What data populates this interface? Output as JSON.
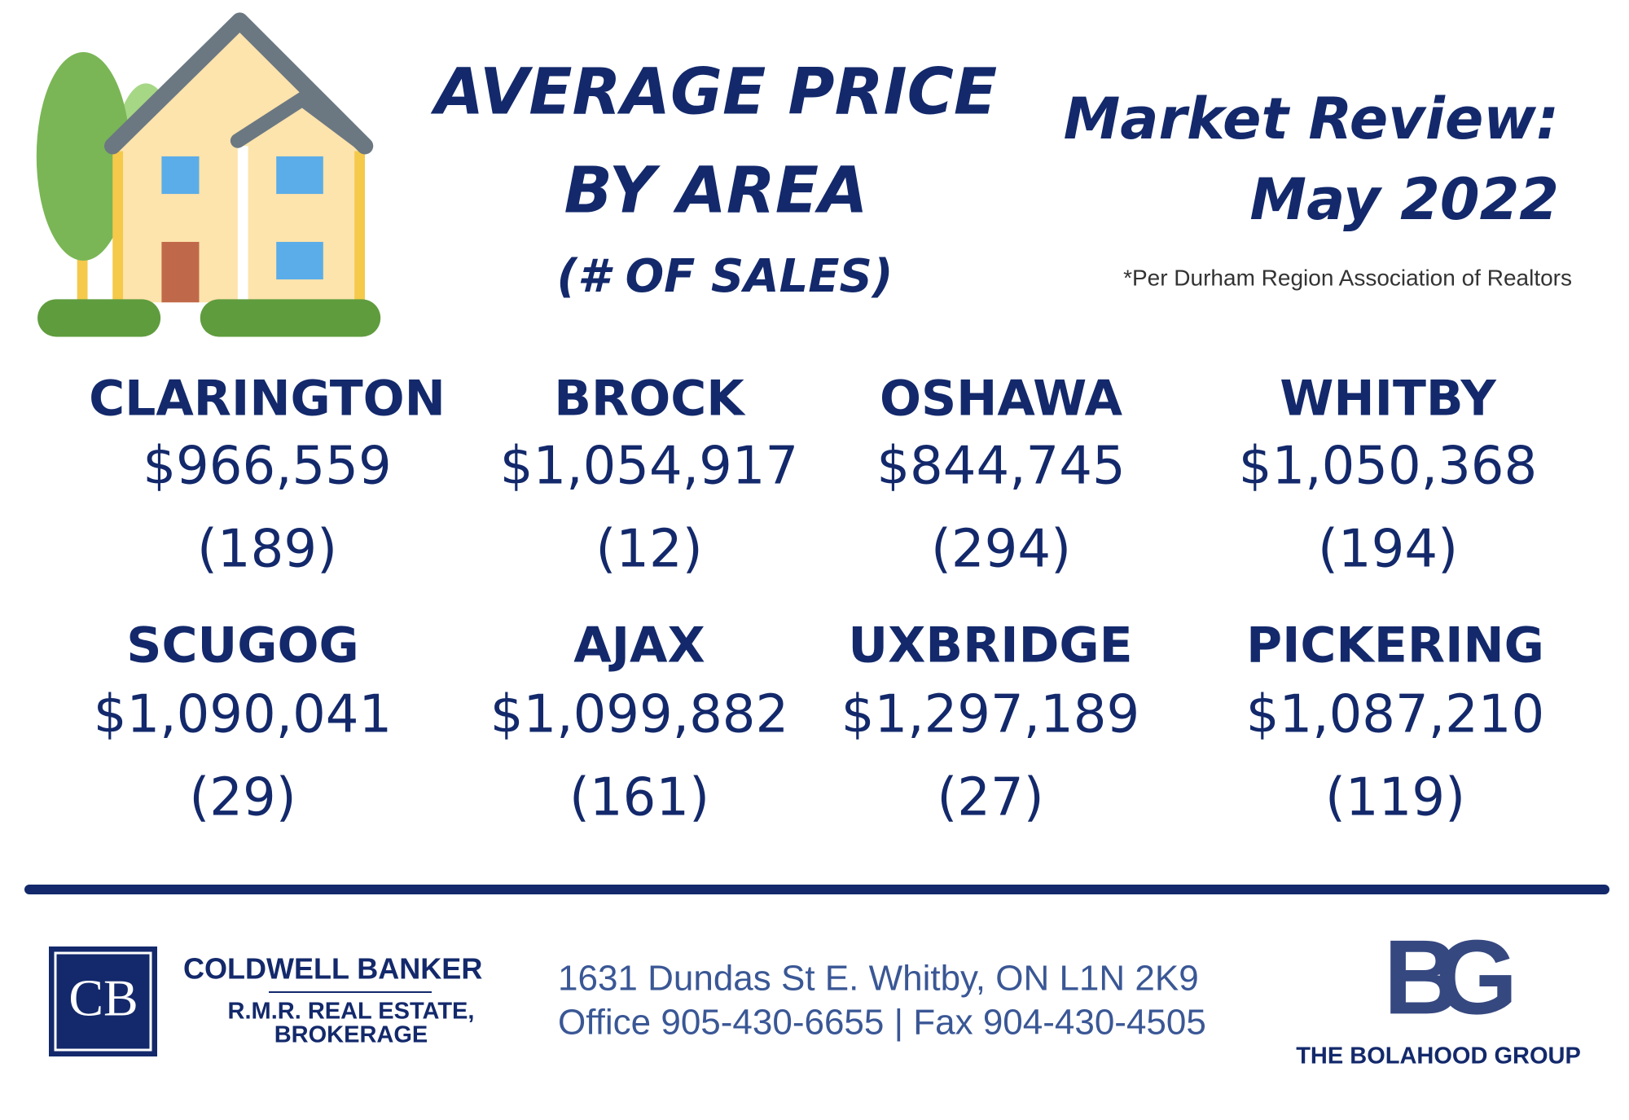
{
  "header": {
    "title_lines": [
      "AVERAGE PRICE",
      "BY AREA"
    ],
    "subtitle": "(# OF SALES)",
    "review_lines": [
      "Market Review:",
      "May 2022"
    ],
    "source_note": "*Per Durham Region Association of Realtors"
  },
  "areas": [
    {
      "name": "CLARINGTON",
      "price": "$966,559",
      "sales": "(189)"
    },
    {
      "name": "BROCK",
      "price": "$1,054,917",
      "sales": "(12)"
    },
    {
      "name": "OSHAWA",
      "price": "$844,745",
      "sales": "(294)"
    },
    {
      "name": "WHITBY",
      "price": "$1,050,368",
      "sales": "(194)"
    },
    {
      "name": "SCUGOG",
      "price": "$1,090,041",
      "sales": "(29)"
    },
    {
      "name": "AJAX",
      "price": "$1,099,882",
      "sales": "(161)"
    },
    {
      "name": "UXBRIDGE",
      "price": "$1,297,189",
      "sales": "(27)"
    },
    {
      "name": "PICKERING",
      "price": "$1,087,210",
      "sales": "(119)"
    }
  ],
  "footer": {
    "brokerage_mark": "CB",
    "brokerage_name": "COLDWELL BANKER",
    "brokerage_lines": [
      "R.M.R. REAL ESTATE,",
      "BROKERAGE"
    ],
    "address_lines": [
      "1631 Dundas St E. Whitby, ON L1N 2K9",
      "Office 905-430-6655 | Fax 904-430-4505"
    ],
    "group_mark": "BG",
    "group_name": "THE BOLAHOOD GROUP"
  }
}
